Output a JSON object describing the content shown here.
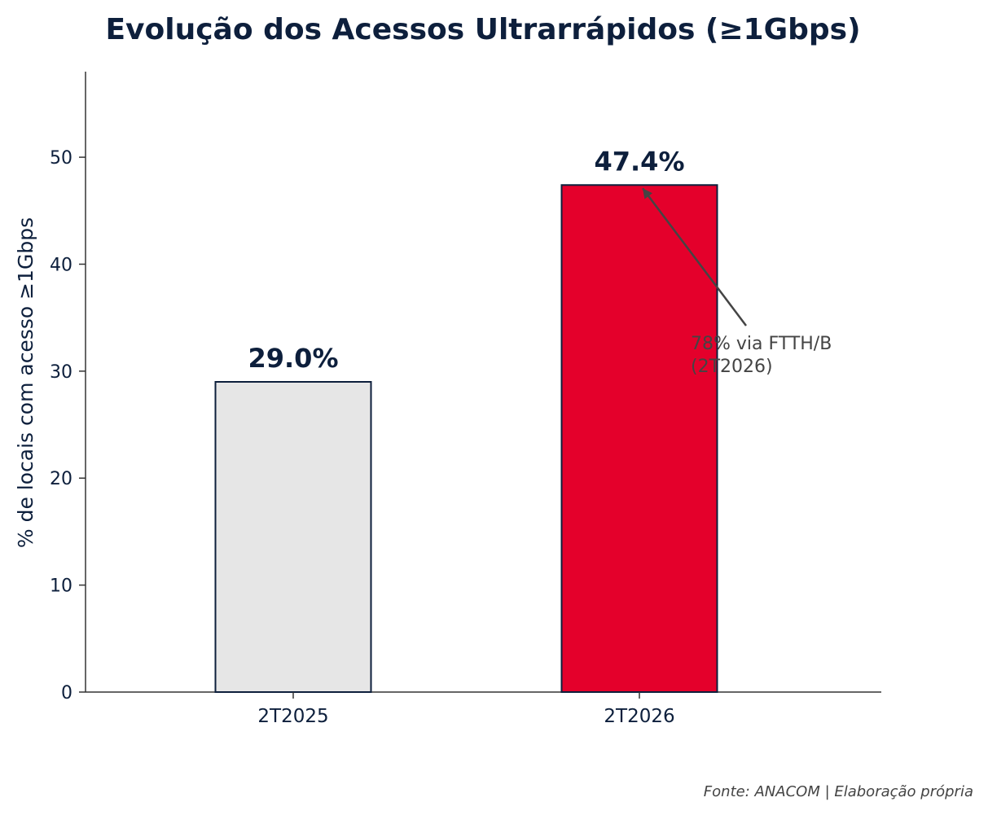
{
  "chart_data": {
    "type": "bar",
    "title": "Evolução dos Acessos Ultrarrápidos (≥1Gbps)",
    "xlabel": "",
    "ylabel": "% de locais com acesso ≥1Gbps",
    "categories": [
      "2T2025",
      "2T2026"
    ],
    "values": [
      29.0,
      47.4
    ],
    "data_labels": [
      "29.0%",
      "47.4%"
    ],
    "colors": [
      "#e6e6e6",
      "#e4002b"
    ],
    "edge_color": "#0d1f3c",
    "ylim": [
      0,
      58
    ],
    "yticks": [
      0,
      10,
      20,
      30,
      40,
      50
    ],
    "grid": false,
    "annotation": {
      "lines": [
        "78% via FTTH/B",
        "(2T2026)"
      ],
      "target_category": "2T2026"
    }
  },
  "source": "Fonte: ANACOM | Elaboração própria",
  "colors": {
    "text": "#0d1f3c",
    "annotation": "#444444",
    "axis": "#333333"
  }
}
